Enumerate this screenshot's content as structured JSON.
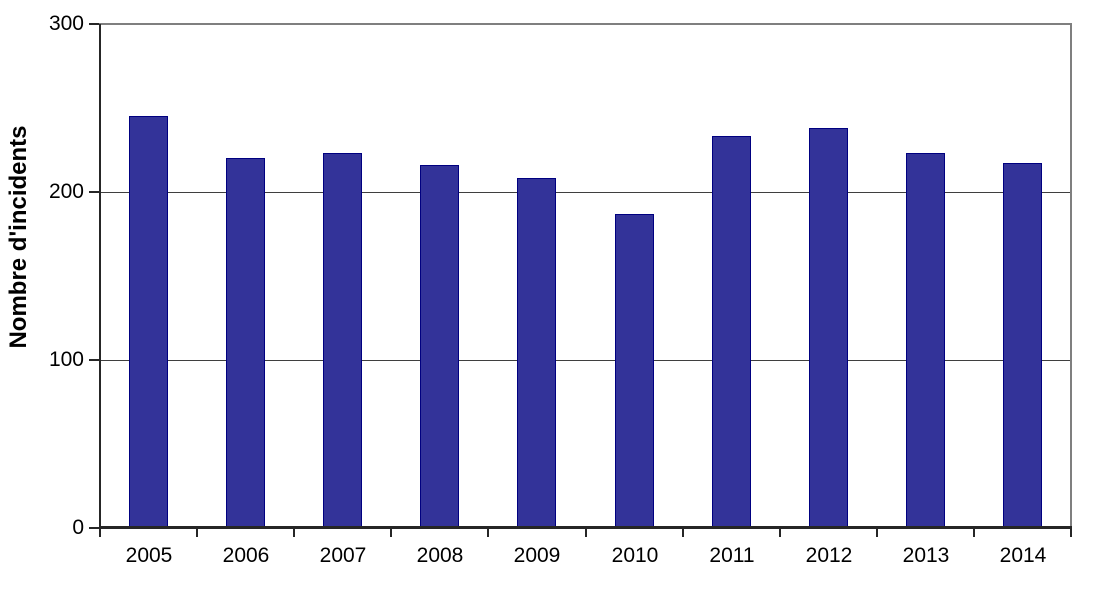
{
  "chart_data": {
    "type": "bar",
    "categories": [
      "2005",
      "2006",
      "2007",
      "2008",
      "2009",
      "2010",
      "2011",
      "2012",
      "2013",
      "2014"
    ],
    "values": [
      245,
      220,
      223,
      216,
      208,
      187,
      233,
      238,
      223,
      217
    ],
    "title": "",
    "xlabel": "",
    "ylabel": "Nombre d'incidents",
    "ylim": [
      0,
      300
    ],
    "yticks": [
      0,
      100,
      200,
      300
    ],
    "gridlines_at": [
      100,
      200
    ],
    "grid": true,
    "legend": "none",
    "colors": {
      "bar_fill": "#333399",
      "bar_border": "#000080",
      "plot_border": "#7f7f7f",
      "axis": "#262626",
      "gridline": "#3f3f3f",
      "text": "#000000",
      "background": "#ffffff"
    }
  }
}
